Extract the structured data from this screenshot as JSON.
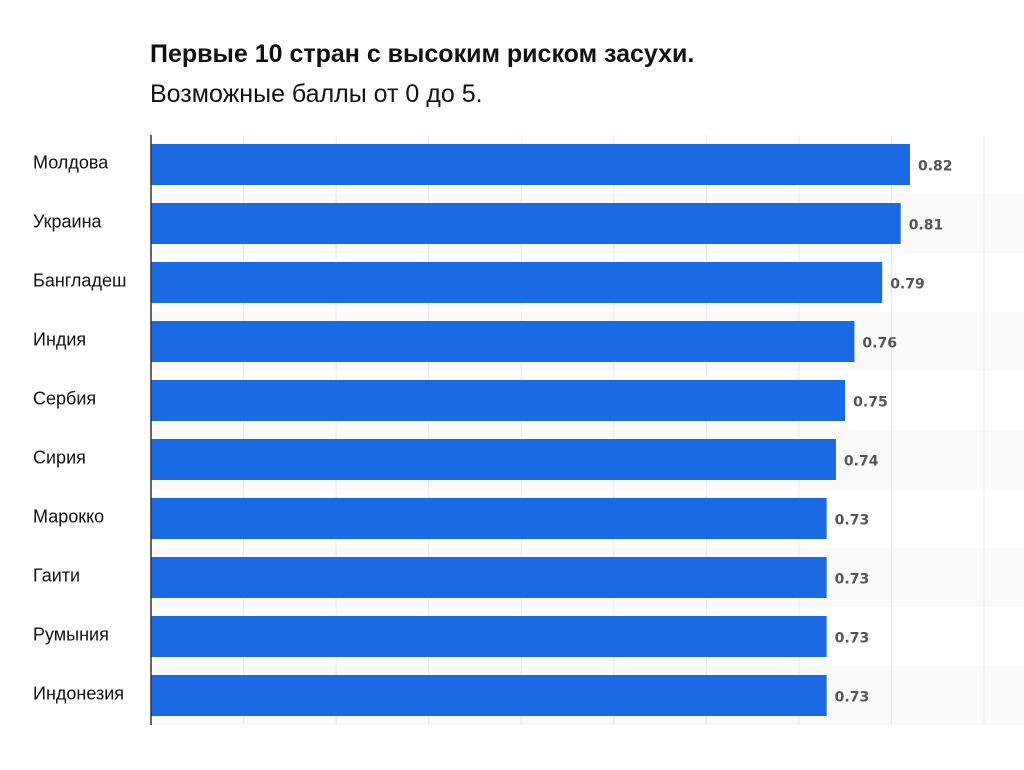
{
  "chart_data": {
    "type": "bar",
    "orientation": "horizontal",
    "title": "Первые 10 стран с высоким риском засухи.",
    "subtitle": "Возможные баллы от 0 до 5.",
    "categories": [
      "Молдова",
      "Украина",
      "Бангладеш",
      "Индия",
      "Сербия",
      "Сирия",
      "Марокко",
      "Гаити",
      "Румыния",
      "Индонезия"
    ],
    "values": [
      0.82,
      0.81,
      0.79,
      0.76,
      0.75,
      0.74,
      0.73,
      0.73,
      0.73,
      0.73
    ],
    "value_labels": [
      "0.82",
      "0.81",
      "0.79",
      "0.76",
      "0.75",
      "0.74",
      "0.73",
      "0.73",
      "0.73",
      "0.73"
    ],
    "xlim": [
      0,
      0.9
    ],
    "grid_step": 0.1,
    "grid": true,
    "bar_color": "#1a6ae3"
  }
}
